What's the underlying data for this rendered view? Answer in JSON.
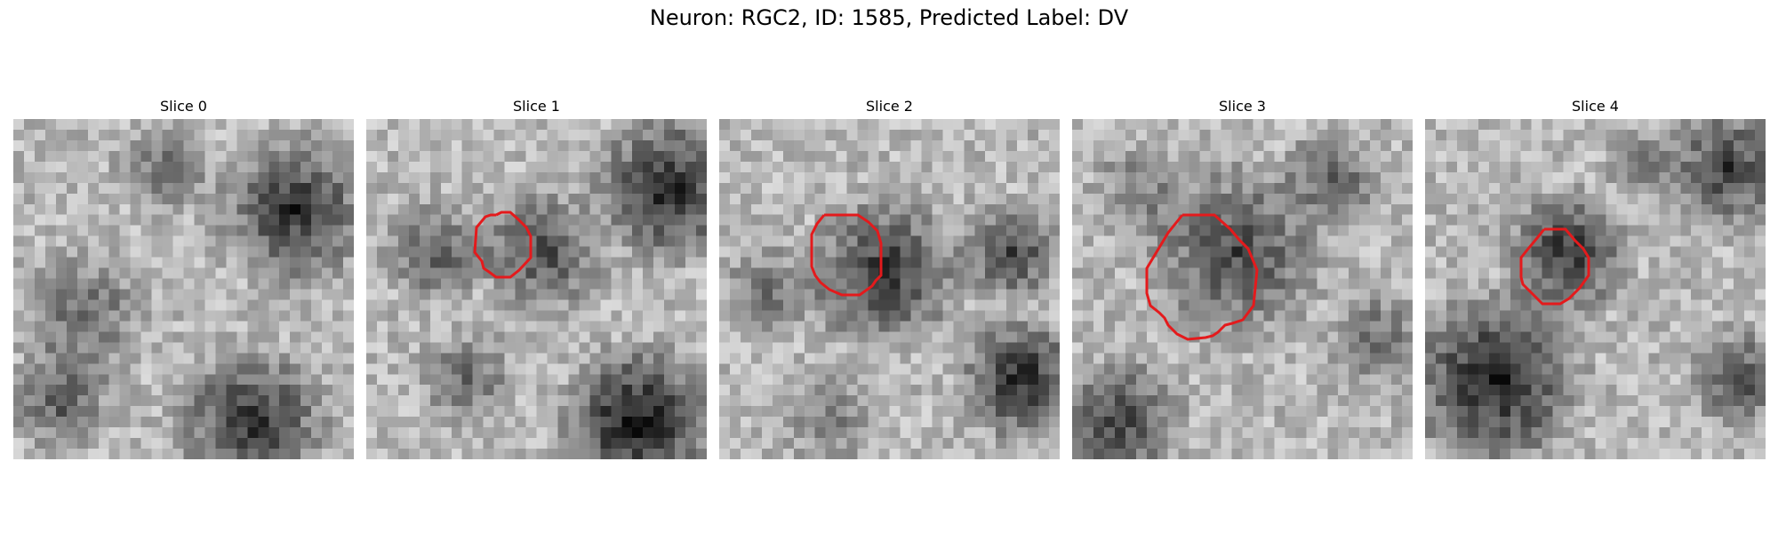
{
  "figure": {
    "title": "Neuron: RGC2, ID: 1585, Predicted Label: DV"
  },
  "panels": [
    {
      "title": "Slice 0",
      "has_contour": false
    },
    {
      "title": "Slice 1",
      "has_contour": true
    },
    {
      "title": "Slice 2",
      "has_contour": true
    },
    {
      "title": "Slice 3",
      "has_contour": true
    },
    {
      "title": "Slice 4",
      "has_contour": true
    }
  ],
  "colors": {
    "contour": "#e41a1c",
    "background": "#ffffff"
  }
}
